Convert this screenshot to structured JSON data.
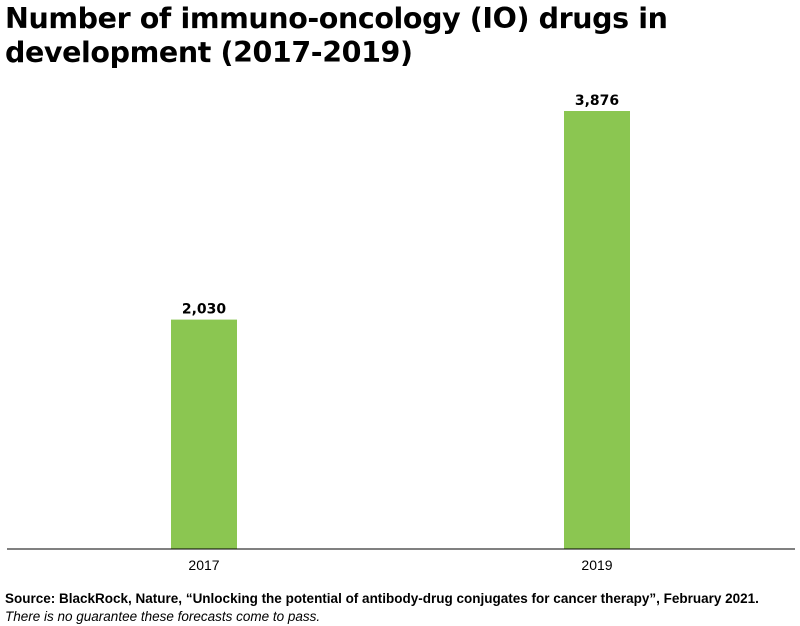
{
  "chart_data": {
    "type": "bar",
    "title": "Number of immuno-oncology (IO) drugs in development (2017-2019)",
    "categories": [
      "2017",
      "2019"
    ],
    "values": [
      2030,
      3876
    ],
    "value_labels": [
      "2,030",
      "3,876"
    ],
    "xlabel": "",
    "ylabel": "",
    "ylim": [
      0,
      3876
    ],
    "grid": false,
    "legend": "none",
    "colors": {
      "bar": "#8bc651",
      "axis": "#000000",
      "text": "#000000"
    }
  },
  "footer": {
    "source": "Source: BlackRock, Nature, “Unlocking the potential of antibody-drug conjugates for cancer therapy”, February 2021.",
    "disclaimer": "There is no guarantee these forecasts come to pass."
  }
}
